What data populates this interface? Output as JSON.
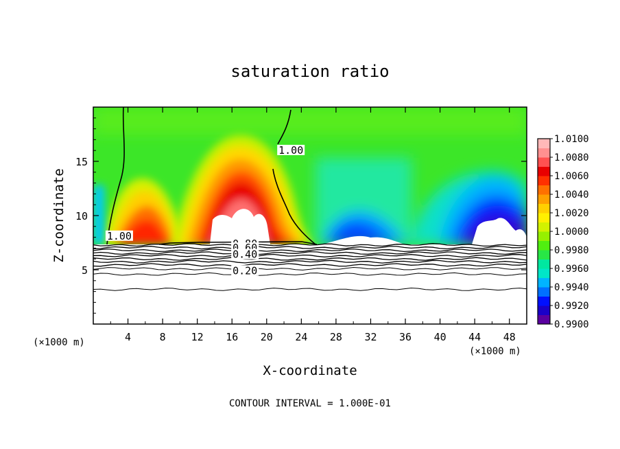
{
  "chart_data": {
    "type": "heatmap",
    "title": "saturation ratio",
    "xlabel": "X-coordinate",
    "ylabel": "Z-coordinate",
    "x_unit_label": "(×1000 m)",
    "x_unit_label_right": "(×1000 m)",
    "xlim": [
      0,
      50
    ],
    "ylim": [
      0,
      20
    ],
    "x_ticks": [
      4,
      8,
      12,
      16,
      20,
      24,
      28,
      32,
      36,
      40,
      44,
      48
    ],
    "y_ticks": [
      5,
      10,
      15
    ],
    "footer": "CONTOUR INTERVAL = 1.000E-01",
    "colorbar": {
      "min": 0.99,
      "max": 1.01,
      "labels": [
        "1.0100",
        "1.0080",
        "1.0060",
        "1.0040",
        "1.0020",
        "1.0000",
        "0.9980",
        "0.9960",
        "0.9940",
        "0.9920",
        "0.9900"
      ],
      "colors": [
        "#5a00a0",
        "#1a00c8",
        "#0010ff",
        "#0070ff",
        "#00b4ff",
        "#00e6c8",
        "#00e8a0",
        "#28e646",
        "#50ee10",
        "#96f000",
        "#d2f200",
        "#fff000",
        "#ffd000",
        "#ffa000",
        "#ff7000",
        "#ff3000",
        "#e80000",
        "#ff5050",
        "#ff9090",
        "#ffb8b8"
      ]
    },
    "contour_labels": [
      {
        "text": "1.00",
        "x": 22.8,
        "z": 15.7
      },
      {
        "text": "1.00",
        "x": 3.0,
        "z": 7.8
      },
      {
        "text": "0.80",
        "x": 17.5,
        "z": 7.1
      },
      {
        "text": "0.60",
        "x": 17.5,
        "z": 6.7
      },
      {
        "text": "0.40",
        "x": 17.5,
        "z": 6.1
      },
      {
        "text": "0.20",
        "x": 17.5,
        "z": 4.6
      }
    ],
    "contour_levels_z": [
      7.3,
      7.05,
      6.8,
      6.55,
      6.3,
      6.0,
      5.75,
      5.45,
      5.1,
      4.6,
      3.2
    ]
  }
}
